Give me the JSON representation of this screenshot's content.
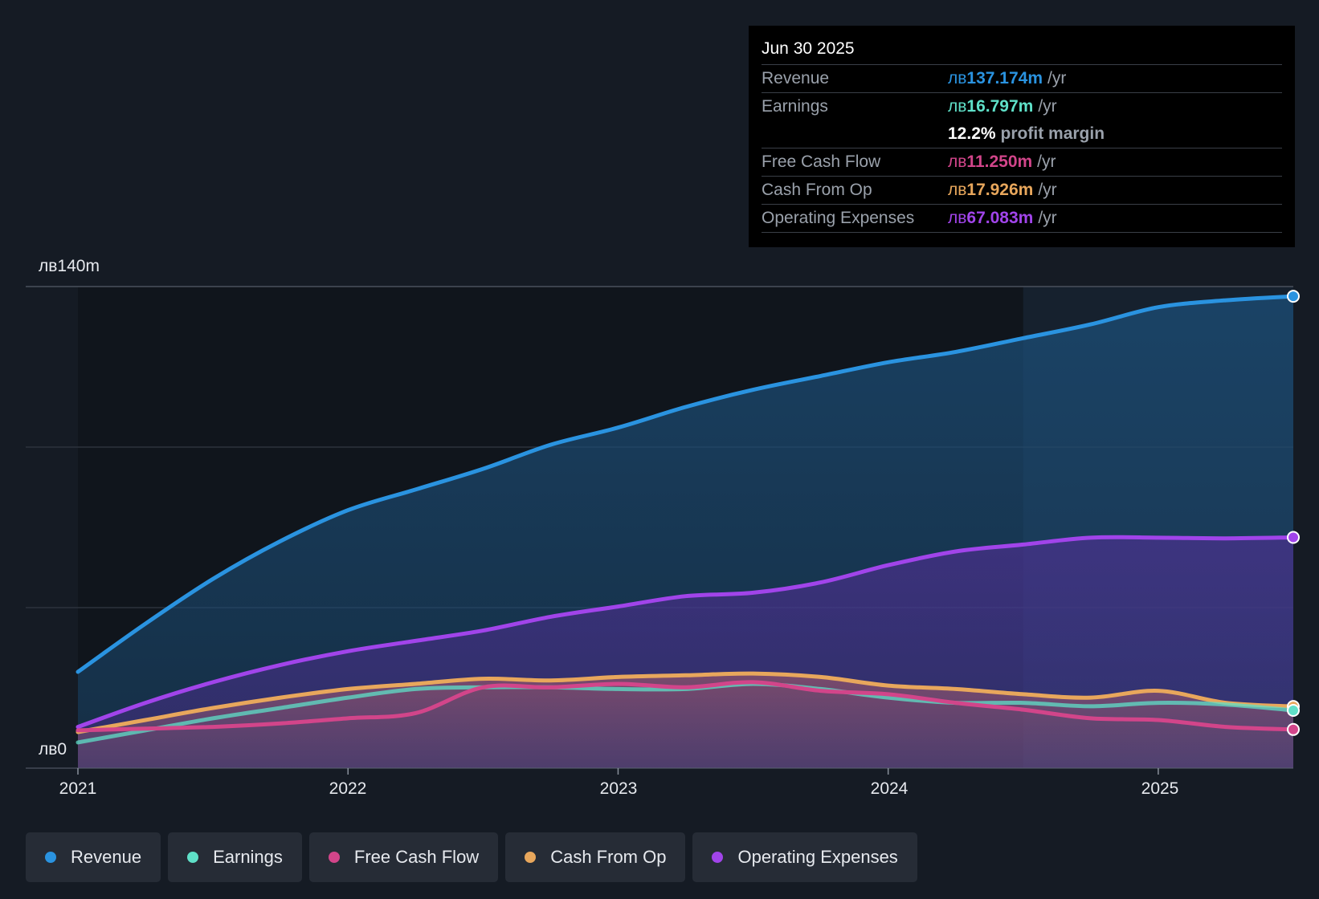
{
  "colors": {
    "background": "#151b24",
    "revenue": "#2a93e0",
    "earnings": "#5fe0c8",
    "free_cash_flow": "#d2458a",
    "cash_from_op": "#e8a75c",
    "operating_expenses": "#a144ea"
  },
  "tooltip": {
    "date": "Jun 30 2025",
    "rows": [
      {
        "label": "Revenue",
        "currency": "лв",
        "value": "137.174m",
        "unit": "/yr"
      },
      {
        "label": "Earnings",
        "currency": "лв",
        "value": "16.797m",
        "unit": "/yr"
      },
      {
        "label": "",
        "value": "12.2%",
        "unit": "profit margin"
      },
      {
        "label": "Free Cash Flow",
        "currency": "лв",
        "value": "11.250m",
        "unit": "/yr"
      },
      {
        "label": "Cash From Op",
        "currency": "лв",
        "value": "17.926m",
        "unit": "/yr"
      },
      {
        "label": "Operating Expenses",
        "currency": "лв",
        "value": "67.083m",
        "unit": "/yr"
      }
    ]
  },
  "legend": [
    {
      "label": "Revenue",
      "icon": "revenue-dot-icon"
    },
    {
      "label": "Earnings",
      "icon": "earnings-dot-icon"
    },
    {
      "label": "Free Cash Flow",
      "icon": "free-cash-flow-dot-icon"
    },
    {
      "label": "Cash From Op",
      "icon": "cash-from-op-dot-icon"
    },
    {
      "label": "Operating Expenses",
      "icon": "operating-expenses-dot-icon"
    }
  ],
  "chart_data": {
    "type": "area",
    "title": "",
    "xlabel": "",
    "ylabel": "",
    "y_tick_labels": [
      "лв140m",
      "лв0"
    ],
    "x_tick_labels": [
      "2021",
      "2022",
      "2023",
      "2024",
      "2025"
    ],
    "ylim": [
      0,
      140
    ],
    "xlim": [
      2021.0,
      2025.5
    ],
    "past_data_highlight_start": 2024.5,
    "grid": "horizontal",
    "legend_position": "bottom",
    "x": [
      2021.0,
      2021.25,
      2021.5,
      2021.75,
      2022.0,
      2022.25,
      2022.5,
      2022.75,
      2023.0,
      2023.25,
      2023.5,
      2023.75,
      2024.0,
      2024.25,
      2024.5,
      2024.75,
      2025.0,
      2025.25,
      2025.5
    ],
    "series": [
      {
        "name": "Revenue",
        "values": [
          28,
          42,
          55,
          66,
          75,
          81,
          87,
          94,
          99,
          105,
          110,
          114,
          118,
          121,
          125,
          129,
          134,
          136,
          137.174
        ]
      },
      {
        "name": "Operating Expenses",
        "values": [
          12,
          19,
          25,
          30,
          34,
          37,
          40,
          44,
          47,
          50,
          51,
          54,
          59,
          63,
          65,
          67,
          67,
          66.8,
          67.083
        ]
      },
      {
        "name": "Cash From Op",
        "values": [
          10.5,
          14,
          17.5,
          20.5,
          23,
          24.5,
          26,
          25.5,
          26.5,
          27,
          27.5,
          26.5,
          24,
          23,
          21.5,
          20.5,
          22.5,
          19,
          17.926
        ]
      },
      {
        "name": "Earnings",
        "values": [
          7.5,
          11,
          14.5,
          17.5,
          20.5,
          23,
          23.5,
          23.5,
          23,
          23,
          24.5,
          23,
          20.5,
          19,
          19,
          18,
          19,
          18.5,
          16.797
        ]
      },
      {
        "name": "Free Cash Flow",
        "values": [
          11,
          11.5,
          12,
          13,
          14.5,
          16,
          23.5,
          23.5,
          24.5,
          23.5,
          25,
          22.5,
          21.5,
          19,
          17,
          14.5,
          14,
          12,
          11.25
        ]
      }
    ]
  }
}
